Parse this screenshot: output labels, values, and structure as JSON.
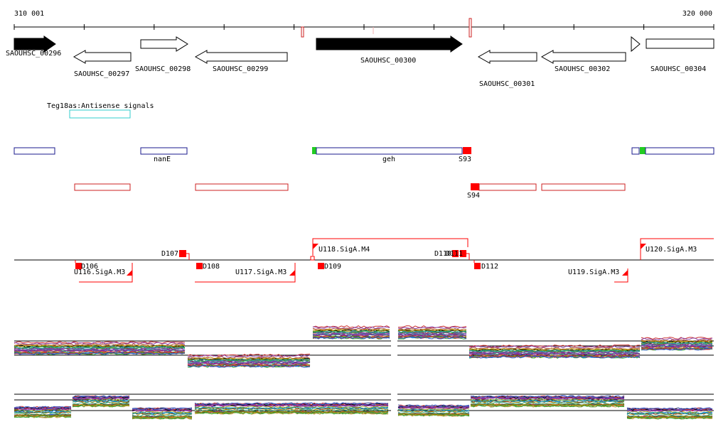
{
  "axis": {
    "start_label": "310 001",
    "end_label": "320 000"
  },
  "genes": {
    "g296": "SAOUHSC_00296",
    "g297": "SAOUHSC_00297",
    "g298": "SAOUHSC_00298",
    "g299": "SAOUHSC_00299",
    "g300": "SAOUHSC_00300",
    "g301": "SAOUHSC_00301",
    "g302": "SAOUHSC_00302",
    "g304": "SAOUHSC_00304"
  },
  "antisense": {
    "label": "Teg18as:Antisense signals"
  },
  "features": {
    "nanE": "nanE",
    "geh": "geh",
    "s93": "S93",
    "s94": "S94"
  },
  "promoters": {
    "d106": "D106",
    "d107": "D107",
    "d108": "D108",
    "d109": "D109",
    "d110": "D110",
    "d111": "D111",
    "d112": "D112",
    "u116": "U116.SigA.M3",
    "u117": "U117.SigA.M3",
    "u118": "U118.SigA.M4",
    "u119": "U119.SigA.M3",
    "u120": "U120.SigA.M3"
  },
  "colors": {
    "axis": "#000000",
    "gene_fill_forward": "#000000",
    "gene_outline": "#000000",
    "blue_box": "#1a1a8c",
    "red_box": "#cc2222",
    "antisense_box": "#33cccc",
    "red_marker": "#ff0000",
    "green_marker": "#22cc22"
  }
}
